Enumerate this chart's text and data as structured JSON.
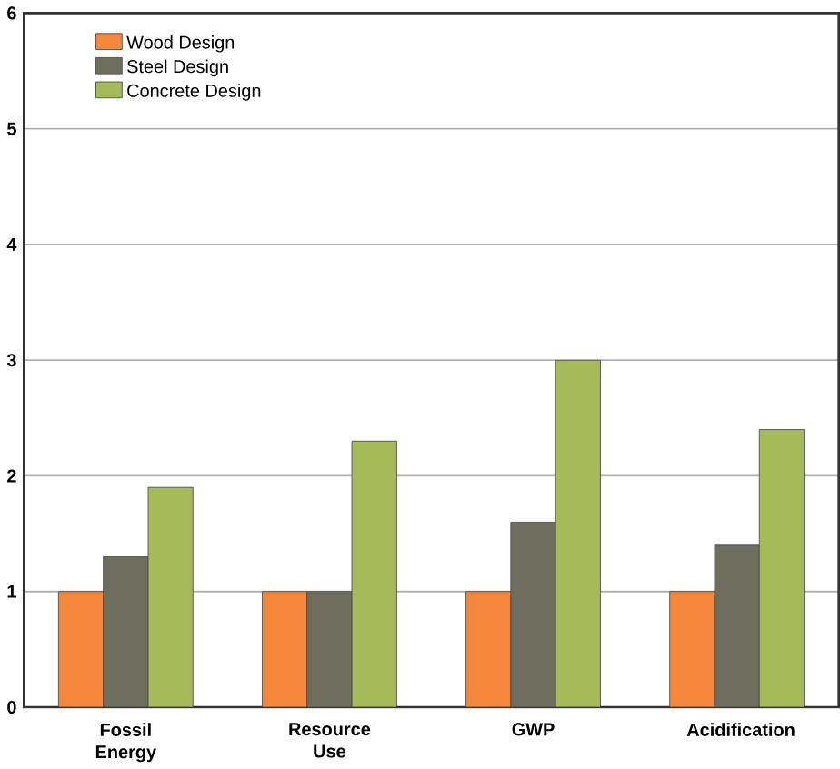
{
  "chart_data": {
    "type": "bar",
    "categories": [
      "Fossil Energy",
      "Resource Use",
      "GWP",
      "Acidification"
    ],
    "series": [
      {
        "name": "Wood Design",
        "color": "#f4873a",
        "values": [
          1,
          1,
          1,
          1
        ]
      },
      {
        "name": "Steel Design",
        "color": "#6e6e5e",
        "values": [
          1.3,
          1,
          1.6,
          1.4
        ]
      },
      {
        "name": "Concrete Design",
        "color": "#a6ba58",
        "values": [
          1.9,
          2.3,
          3.0,
          2.4
        ]
      }
    ],
    "ylim": [
      0,
      6
    ],
    "yticks": [
      0,
      1,
      2,
      3,
      4,
      5,
      6
    ],
    "grid": "y",
    "legend": "top left"
  }
}
